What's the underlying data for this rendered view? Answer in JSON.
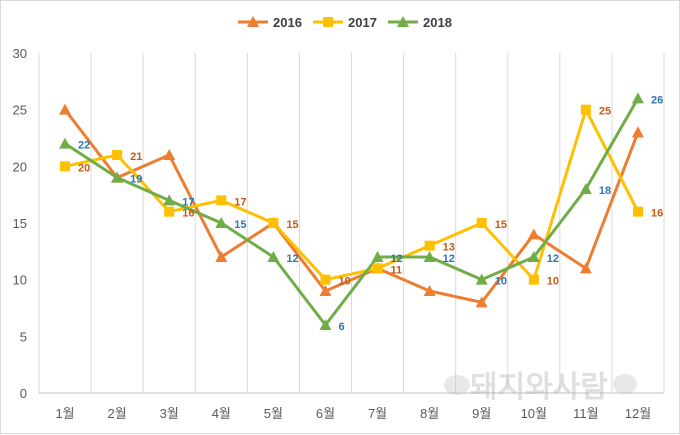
{
  "chart_data": {
    "type": "line",
    "categories": [
      "1월",
      "2월",
      "3월",
      "4월",
      "5월",
      "6월",
      "7월",
      "8월",
      "9월",
      "10월",
      "11월",
      "12월"
    ],
    "series": [
      {
        "name": "2016",
        "color": "#ed7d31",
        "marker": "triangle",
        "label_color": "#c55a11",
        "values": [
          25,
          19,
          21,
          12,
          15,
          9,
          11,
          9,
          8,
          14,
          11,
          23
        ],
        "labels": [
          "",
          "",
          "",
          "",
          "",
          "",
          "",
          "",
          "",
          "",
          "",
          ""
        ]
      },
      {
        "name": "2017",
        "color": "#ffc000",
        "marker": "square",
        "label_color": "#c55a11",
        "values": [
          20,
          21,
          16,
          17,
          15,
          10,
          11,
          13,
          15,
          10,
          25,
          16
        ],
        "labels": [
          "20",
          "21",
          "16",
          "17",
          "15",
          "10",
          "11",
          "13",
          "15",
          "10",
          "25",
          "16"
        ]
      },
      {
        "name": "2018",
        "color": "#70ad47",
        "marker": "triangle",
        "label_color": "#2e75b6",
        "values": [
          22,
          19,
          17,
          15,
          12,
          6,
          12,
          12,
          10,
          12,
          18,
          26
        ],
        "labels": [
          "22",
          "19",
          "17",
          "15",
          "12",
          "6",
          "12",
          "12",
          "10",
          "12",
          "18",
          "26"
        ]
      }
    ],
    "ylim": [
      0,
      30
    ],
    "yticks": [
      "0",
      "5",
      "10",
      "15",
      "20",
      "25",
      "30"
    ],
    "grid": "vertical",
    "legend": "top-center"
  },
  "watermark": {
    "text": "돼지와사람",
    "icon": "pig-icon"
  }
}
